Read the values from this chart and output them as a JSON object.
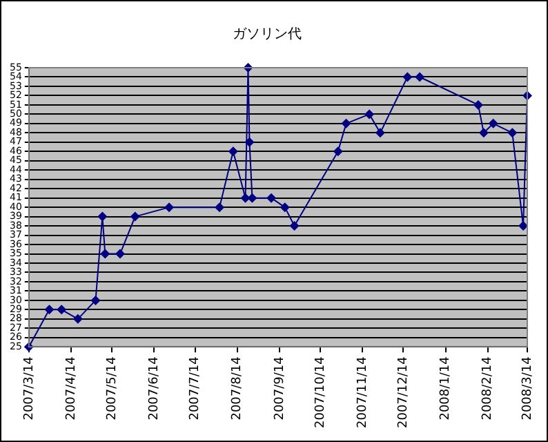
{
  "chart_data": {
    "type": "line",
    "title": "ガソリン代",
    "x": [
      "2007-03-14",
      "2007-03-29",
      "2007-04-07",
      "2007-04-19",
      "2007-05-02",
      "2007-05-07",
      "2007-05-09",
      "2007-05-20",
      "2007-05-31",
      "2007-06-25",
      "2007-08-01",
      "2007-08-11",
      "2007-08-20",
      "2007-08-22",
      "2007-08-23",
      "2007-08-25",
      "2007-09-08",
      "2007-09-18",
      "2007-09-25",
      "2007-10-27",
      "2007-11-02",
      "2007-11-19",
      "2007-11-27",
      "2007-12-17",
      "2007-12-26",
      "2008-02-07",
      "2008-02-11",
      "2008-02-18",
      "2008-03-03",
      "2008-03-11",
      "2008-03-14"
    ],
    "series": [
      {
        "color": "#000080",
        "values": [
          25,
          29,
          29,
          28,
          30,
          39,
          35,
          35,
          39,
          40,
          40,
          46,
          41,
          55,
          47,
          41,
          41,
          40,
          38,
          46,
          49,
          50,
          48,
          54,
          54,
          51,
          48,
          49,
          48,
          38,
          52
        ]
      }
    ],
    "xlim": [
      "2007-03-14",
      "2008-03-14"
    ],
    "xticks": [
      {
        "value": "2007-03-14",
        "label": "2007/3/14"
      },
      {
        "value": "2007-04-14",
        "label": "2007/4/14"
      },
      {
        "value": "2007-05-14",
        "label": "2007/5/14"
      },
      {
        "value": "2007-06-14",
        "label": "2007/6/14"
      },
      {
        "value": "2007-07-14",
        "label": "2007/7/14"
      },
      {
        "value": "2007-08-14",
        "label": "2007/8/14"
      },
      {
        "value": "2007-09-14",
        "label": "2007/9/14"
      },
      {
        "value": "2007-10-14",
        "label": "2007/10/14"
      },
      {
        "value": "2007-11-14",
        "label": "2007/11/14"
      },
      {
        "value": "2007-12-14",
        "label": "2007/12/14"
      },
      {
        "value": "2008-01-14",
        "label": "2008/1/14"
      },
      {
        "value": "2008-02-14",
        "label": "2008/2/14"
      },
      {
        "value": "2008-03-14",
        "label": "2008/3/14"
      }
    ],
    "ylim": [
      25,
      55
    ],
    "yticks": [
      25,
      26,
      27,
      28,
      29,
      30,
      31,
      32,
      33,
      34,
      35,
      36,
      37,
      38,
      39,
      40,
      41,
      42,
      43,
      44,
      45,
      46,
      47,
      48,
      49,
      50,
      51,
      52,
      53,
      54,
      55
    ],
    "grid": "y",
    "legend": false,
    "marker": "diamond",
    "line_style": "solid"
  }
}
